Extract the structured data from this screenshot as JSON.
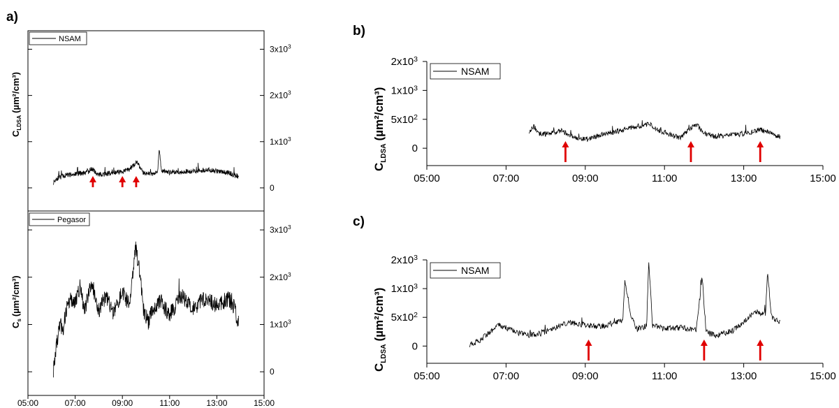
{
  "chart_data": [
    {
      "panel": "a)",
      "type": "line",
      "ylabel_main": "C",
      "ylabel_sub": "LDSA",
      "ylabel_unit": "(µm²/cm³)",
      "y_ticks": [
        "0",
        "1x10³",
        "2x10³",
        "3x10³"
      ],
      "ylim": [
        -500,
        3400
      ],
      "xlim": [
        "05:00",
        "15:00"
      ],
      "series": [
        {
          "name": "NSAM",
          "start": "06:05",
          "end": "13:55",
          "points": [
            [
              6.08,
              120
            ],
            [
              6.2,
              200
            ],
            [
              6.5,
              260
            ],
            [
              7.0,
              300
            ],
            [
              7.5,
              330
            ],
            [
              7.73,
              420
            ],
            [
              7.9,
              290
            ],
            [
              8.3,
              300
            ],
            [
              8.6,
              330
            ],
            [
              9.0,
              350
            ],
            [
              9.3,
              410
            ],
            [
              9.6,
              560
            ],
            [
              9.9,
              320
            ],
            [
              10.3,
              310
            ],
            [
              10.5,
              340
            ],
            [
              10.55,
              880
            ],
            [
              10.65,
              380
            ],
            [
              11.0,
              330
            ],
            [
              11.5,
              350
            ],
            [
              12.0,
              360
            ],
            [
              12.5,
              390
            ],
            [
              13.0,
              360
            ],
            [
              13.5,
              330
            ],
            [
              13.92,
              230
            ]
          ]
        }
      ],
      "arrows": [
        "07:45",
        "09:00",
        "09:35"
      ]
    },
    {
      "panel": "",
      "type": "line",
      "ylabel_main": "C",
      "ylabel_sub": "s",
      "ylabel_unit": "(µm²/cm³)",
      "x_ticks": [
        "05:00",
        "07:00",
        "09:00",
        "11:00",
        "13:00",
        "15:00"
      ],
      "y_ticks": [
        "0",
        "1x10³",
        "2x10³",
        "3x10³"
      ],
      "ylim": [
        -500,
        3400
      ],
      "xlim": [
        "05:00",
        "15:00"
      ],
      "series": [
        {
          "name": "Pegasor",
          "start": "06:05",
          "end": "13:55",
          "points": [
            [
              6.08,
              50
            ],
            [
              6.2,
              500
            ],
            [
              6.35,
              1000
            ],
            [
              6.5,
              900
            ],
            [
              6.7,
              1500
            ],
            [
              7.0,
              1450
            ],
            [
              7.2,
              1800
            ],
            [
              7.4,
              1300
            ],
            [
              7.7,
              1900
            ],
            [
              8.0,
              1300
            ],
            [
              8.3,
              1600
            ],
            [
              8.6,
              1250
            ],
            [
              9.0,
              1700
            ],
            [
              9.3,
              1400
            ],
            [
              9.55,
              2650
            ],
            [
              9.7,
              2200
            ],
            [
              9.9,
              1300
            ],
            [
              10.1,
              1050
            ],
            [
              10.3,
              1350
            ],
            [
              10.6,
              1500
            ],
            [
              11.0,
              1200
            ],
            [
              11.5,
              1600
            ],
            [
              12.0,
              1350
            ],
            [
              12.5,
              1550
            ],
            [
              13.0,
              1400
            ],
            [
              13.5,
              1550
            ],
            [
              13.7,
              1400
            ],
            [
              13.92,
              1050
            ]
          ]
        }
      ]
    },
    {
      "panel": "b)",
      "type": "line",
      "ylabel_main": "C",
      "ylabel_sub": "LDSA",
      "ylabel_unit": "(µm²/cm³)",
      "x_ticks": [
        "05:00",
        "07:00",
        "09:00",
        "11:00",
        "13:00",
        "15:00"
      ],
      "y_ticks": [
        "0",
        "5x10²",
        "1x10³",
        "2x10³"
      ],
      "ylim": [
        -300,
        1500
      ],
      "xlim": [
        "05:00",
        "15:00"
      ],
      "series": [
        {
          "name": "NSAM",
          "start": "07:35",
          "end": "13:55",
          "points": [
            [
              7.58,
              300
            ],
            [
              7.7,
              380
            ],
            [
              7.85,
              250
            ],
            [
              8.1,
              250
            ],
            [
              8.4,
              300
            ],
            [
              8.7,
              200
            ],
            [
              9.0,
              150
            ],
            [
              9.4,
              230
            ],
            [
              9.8,
              290
            ],
            [
              10.2,
              360
            ],
            [
              10.6,
              420
            ],
            [
              10.9,
              300
            ],
            [
              11.2,
              220
            ],
            [
              11.4,
              180
            ],
            [
              11.6,
              320
            ],
            [
              11.8,
              420
            ],
            [
              12.0,
              260
            ],
            [
              12.3,
              200
            ],
            [
              12.7,
              230
            ],
            [
              13.1,
              260
            ],
            [
              13.4,
              320
            ],
            [
              13.7,
              260
            ],
            [
              13.92,
              190
            ]
          ]
        }
      ],
      "arrows": [
        "08:30",
        "11:40",
        "13:25"
      ]
    },
    {
      "panel": "c)",
      "type": "line",
      "ylabel_main": "C",
      "ylabel_sub": "LDSA",
      "ylabel_unit": "(µm²/cm³)",
      "x_ticks": [
        "05:00",
        "07:00",
        "09:00",
        "11:00",
        "13:00",
        "15:00"
      ],
      "y_ticks": [
        "0",
        "5x10²",
        "1x10³",
        "2x10³"
      ],
      "ylim": [
        -300,
        1500
      ],
      "xlim": [
        "05:00",
        "15:00"
      ],
      "series": [
        {
          "name": "NSAM",
          "start": "06:05",
          "end": "13:55",
          "points": [
            [
              6.08,
              30
            ],
            [
              6.3,
              80
            ],
            [
              6.6,
              250
            ],
            [
              6.8,
              380
            ],
            [
              7.1,
              280
            ],
            [
              7.5,
              190
            ],
            [
              7.9,
              220
            ],
            [
              8.3,
              340
            ],
            [
              8.6,
              420
            ],
            [
              9.0,
              360
            ],
            [
              9.4,
              340
            ],
            [
              9.7,
              400
            ],
            [
              9.95,
              460
            ],
            [
              10.0,
              1150
            ],
            [
              10.15,
              550
            ],
            [
              10.3,
              300
            ],
            [
              10.55,
              350
            ],
            [
              10.6,
              1500
            ],
            [
              10.7,
              350
            ],
            [
              11.0,
              300
            ],
            [
              11.4,
              320
            ],
            [
              11.8,
              280
            ],
            [
              11.95,
              1200
            ],
            [
              12.05,
              240
            ],
            [
              12.3,
              180
            ],
            [
              12.7,
              260
            ],
            [
              13.0,
              420
            ],
            [
              13.3,
              600
            ],
            [
              13.55,
              560
            ],
            [
              13.6,
              1300
            ],
            [
              13.7,
              520
            ],
            [
              13.92,
              400
            ]
          ]
        }
      ],
      "arrows": [
        "09:05",
        "12:00",
        "13:25"
      ]
    }
  ]
}
